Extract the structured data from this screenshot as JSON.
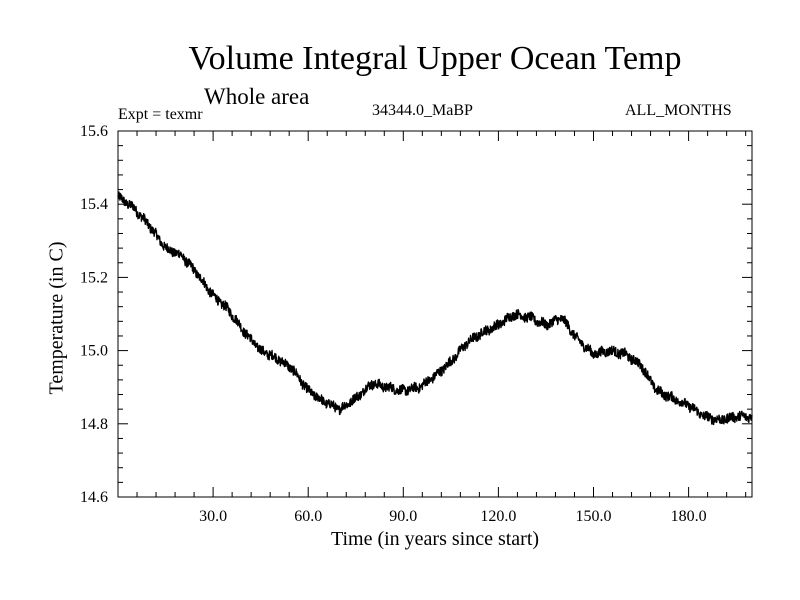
{
  "chart_data": {
    "type": "line",
    "title": "Volume Integral Upper Ocean Temp",
    "subtitle": "Whole area",
    "expt_label": "Expt = texmr",
    "period_label": "34344.0_MaBP",
    "months_label": "ALL_MONTHS",
    "xlabel": "Time (in years since start)",
    "ylabel": "Temperature (in C)",
    "xlim": [
      0,
      200
    ],
    "ylim": [
      14.6,
      15.6
    ],
    "xticks": [
      30,
      60,
      90,
      120,
      150,
      180
    ],
    "xtick_labels": [
      "30.0",
      "60.0",
      "90.0",
      "120.0",
      "150.0",
      "180.0"
    ],
    "yticks": [
      14.6,
      14.8,
      15.0,
      15.2,
      15.4,
      15.6
    ],
    "ytick_labels": [
      "14.6",
      "14.8",
      "15.0",
      "15.2",
      "15.4",
      "15.6"
    ],
    "grid": false,
    "series": [
      {
        "name": "Temperature",
        "color": "#000000",
        "x": [
          0,
          5,
          10,
          15,
          20,
          25,
          30,
          35,
          40,
          45,
          50,
          55,
          60,
          65,
          70,
          75,
          80,
          85,
          90,
          95,
          100,
          105,
          110,
          115,
          120,
          125,
          130,
          135,
          140,
          145,
          150,
          155,
          160,
          165,
          170,
          175,
          180,
          185,
          190,
          195,
          200
        ],
        "values": [
          15.42,
          15.39,
          15.34,
          15.28,
          15.26,
          15.21,
          15.15,
          15.11,
          15.05,
          15.0,
          14.98,
          14.95,
          14.89,
          14.86,
          14.84,
          14.87,
          14.91,
          14.9,
          14.89,
          14.9,
          14.93,
          14.97,
          15.02,
          15.05,
          15.07,
          15.1,
          15.09,
          15.07,
          15.09,
          15.03,
          14.99,
          15.0,
          14.99,
          14.96,
          14.89,
          14.87,
          14.85,
          14.82,
          14.81,
          14.82,
          14.82
        ]
      }
    ]
  }
}
